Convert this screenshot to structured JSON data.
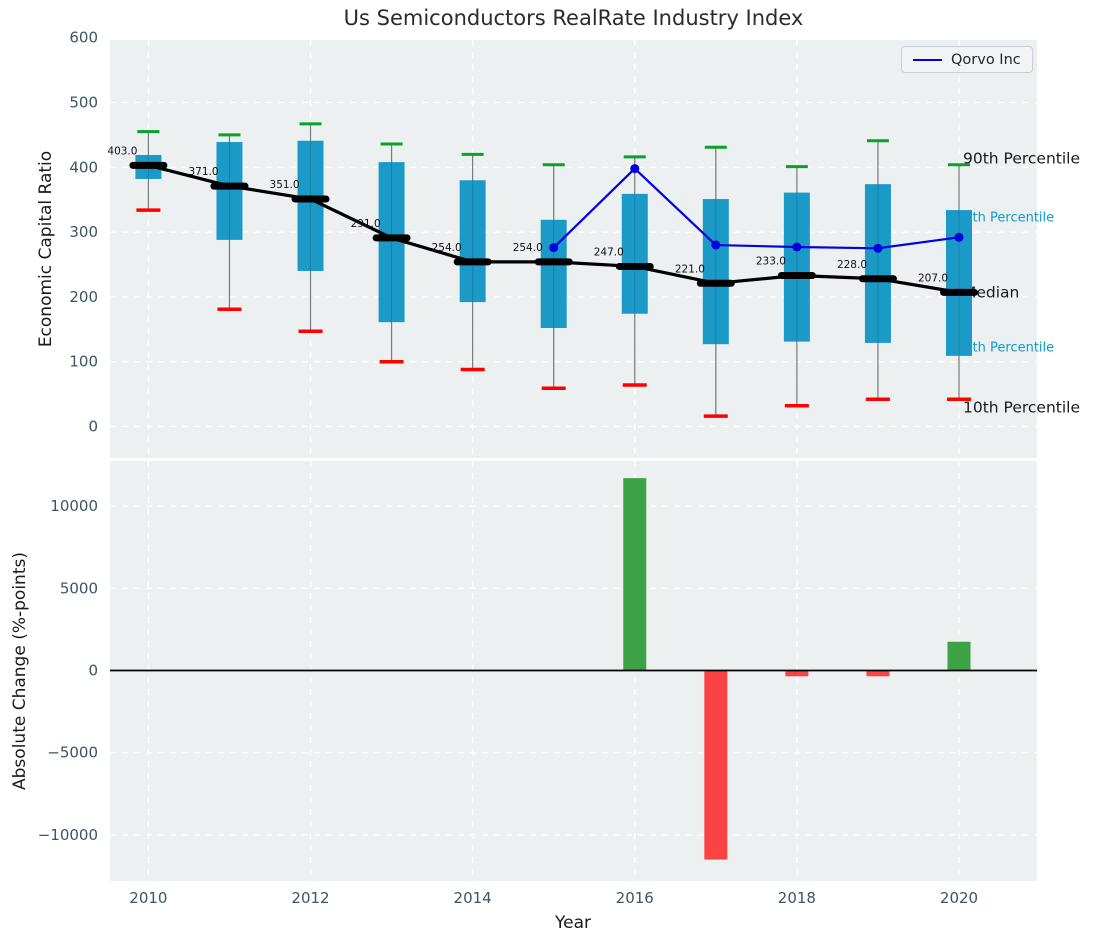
{
  "title": "Us Semiconductors RealRate Industry Index",
  "legend": {
    "label": "Qorvo Inc"
  },
  "chart_data": [
    {
      "type": "boxplot+line",
      "panel": "top",
      "title": "Us Semiconductors RealRate Industry Index",
      "ylabel": "Economic Capital Ratio",
      "ylim": [
        -48,
        592
      ],
      "yticks": [
        0,
        100,
        200,
        300,
        400,
        500,
        600
      ],
      "xticks": [
        2010,
        2012,
        2014,
        2016,
        2018,
        2020
      ],
      "grid": true,
      "legend_position": "upper right",
      "years": [
        2010,
        2011,
        2012,
        2013,
        2014,
        2015,
        2016,
        2017,
        2018,
        2019,
        2020
      ],
      "series": [
        {
          "name": "90th Percentile",
          "role": "p90",
          "values": [
            455,
            450,
            467,
            436,
            420,
            404,
            416,
            431,
            401,
            441,
            404
          ]
        },
        {
          "name": "75th Percentile",
          "role": "p75",
          "values": [
            419,
            439,
            441,
            408,
            380,
            319,
            359,
            351,
            361,
            374,
            334
          ]
        },
        {
          "name": "Median",
          "role": "median",
          "values": [
            403,
            371,
            351,
            291,
            254,
            254,
            247,
            221,
            233,
            228,
            207
          ]
        },
        {
          "name": "25th Percentile",
          "role": "p25",
          "values": [
            382,
            288,
            240,
            161,
            192,
            152,
            174,
            127,
            131,
            129,
            109
          ]
        },
        {
          "name": "10th Percentile",
          "role": "p10",
          "values": [
            334,
            181,
            147,
            100,
            88,
            59,
            64,
            16,
            32,
            42,
            42
          ]
        },
        {
          "name": "Qorvo Inc",
          "role": "line",
          "x": [
            2015,
            2016,
            2017,
            2018,
            2019,
            2020
          ],
          "values": [
            276,
            398,
            280,
            277,
            275,
            292
          ]
        }
      ],
      "median_point_labels": [
        "403.0",
        "371.0",
        "351.0",
        "291.0",
        "254.0",
        "254.0",
        "247.0",
        "221.0",
        "233.0",
        "228.0",
        "207.0"
      ],
      "annotations": [
        {
          "text": "90th Percentile",
          "size": "large",
          "color": "#1a1a1a"
        },
        {
          "text": "75th Percentile",
          "size": "small",
          "color": "#0e9ac8"
        },
        {
          "text": "Median",
          "size": "large",
          "color": "#1a1a1a"
        },
        {
          "text": "25th Percentile",
          "size": "small",
          "color": "#0e9ac8"
        },
        {
          "text": "10th Percentile",
          "size": "large",
          "color": "#1a1a1a"
        }
      ]
    },
    {
      "type": "bar",
      "panel": "bottom",
      "ylabel": "Absolute Change (%-points)",
      "xlabel": "Year",
      "ylim": [
        -12800,
        12800
      ],
      "yticks": [
        10000,
        5000,
        0,
        -5000,
        -10000
      ],
      "xticks": [
        2010,
        2012,
        2014,
        2016,
        2018,
        2020
      ],
      "grid": true,
      "x": [
        2016,
        2017,
        2018,
        2019,
        2020
      ],
      "values": [
        11700,
        -11500,
        -350,
        -350,
        1750
      ],
      "positive_color": "#3da245",
      "negative_color": "#fc4343"
    }
  ],
  "colors": {
    "panel_background": "#edf0f1",
    "gridline": "#ffffff",
    "box_fill": "#1b9ac8",
    "cap_90th": "#07a12b",
    "cap_10th": "#fe0000",
    "median": "#000000",
    "qorvo_line": "#0202df",
    "bar_positive": "#3da245",
    "bar_negative": "#fc4343",
    "tick_label": "#3d5468",
    "whisker": "#77797c"
  }
}
